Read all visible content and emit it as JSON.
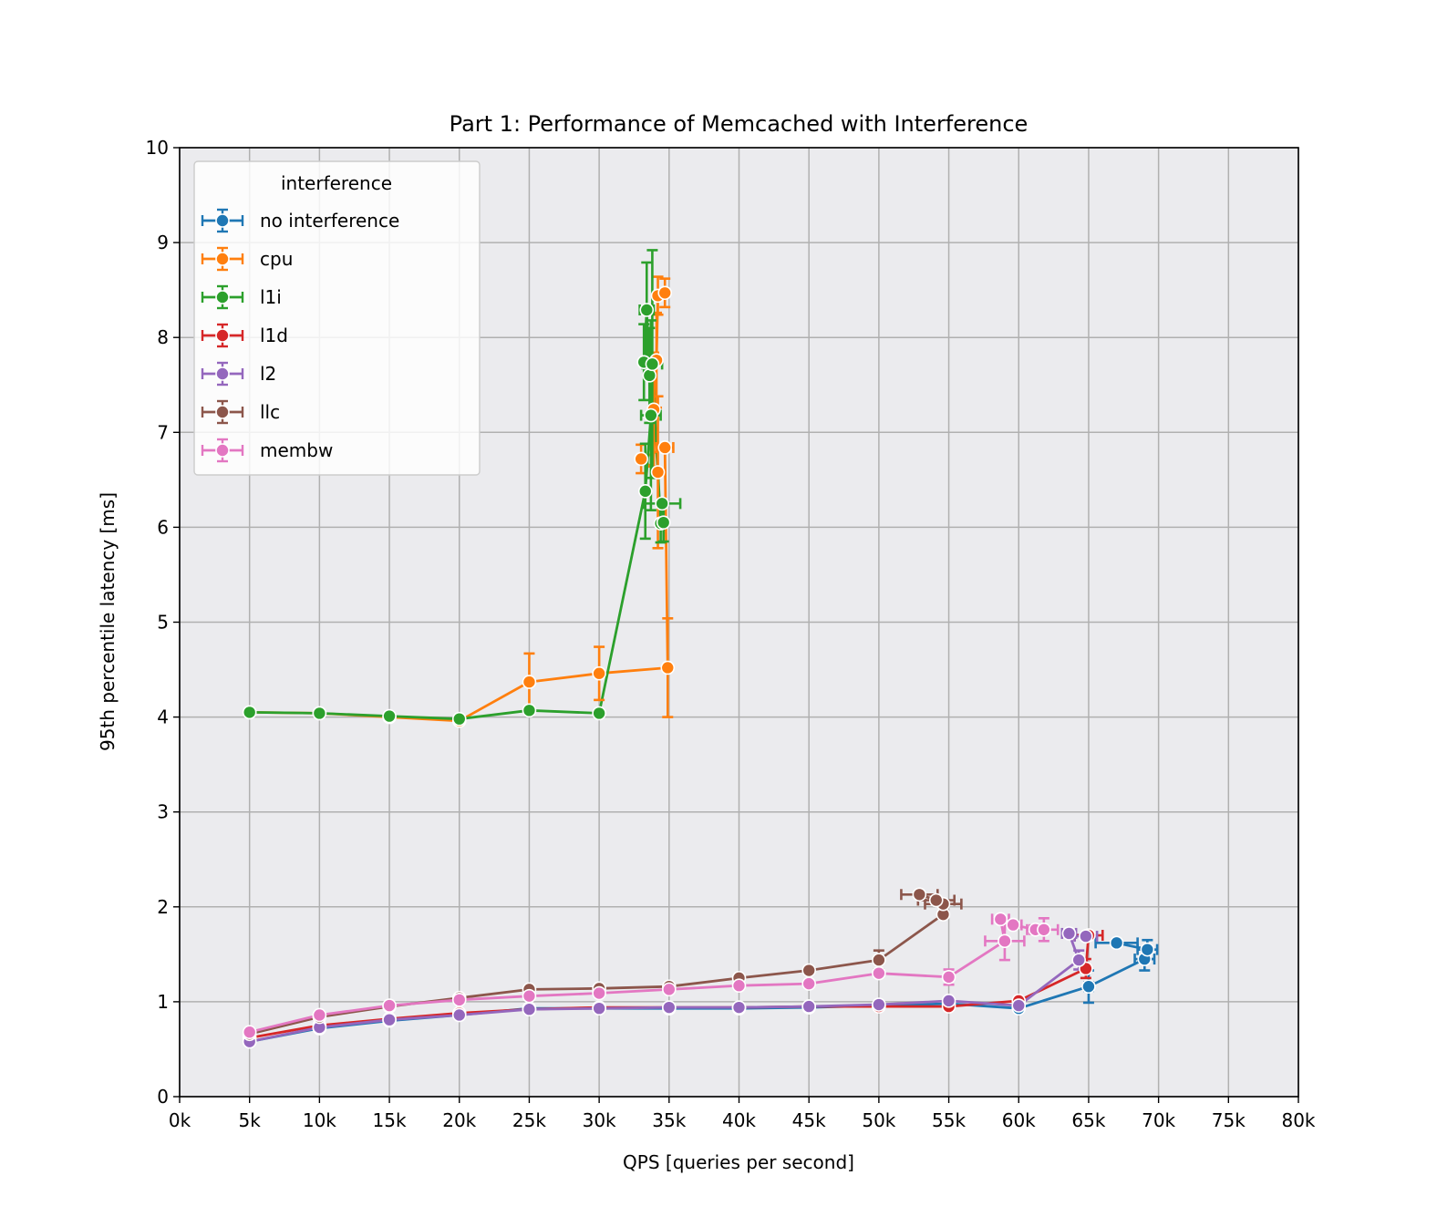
{
  "chart_data": {
    "type": "line",
    "title": "Part 1: Performance of Memcached with Interference",
    "xlabel": "QPS [queries per second]",
    "ylabel": "95th percentile latency [ms]",
    "xlim": [
      0,
      80000
    ],
    "ylim": [
      0,
      10
    ],
    "grid": true,
    "legend": {
      "title": "interference",
      "placement": "top-left"
    },
    "xticks": [
      0,
      5000,
      10000,
      15000,
      20000,
      25000,
      30000,
      35000,
      40000,
      45000,
      50000,
      55000,
      60000,
      65000,
      70000,
      75000,
      80000
    ],
    "xtick_labels": [
      "0k",
      "5k",
      "10k",
      "15k",
      "20k",
      "25k",
      "30k",
      "35k",
      "40k",
      "45k",
      "50k",
      "55k",
      "60k",
      "65k",
      "70k",
      "75k",
      "80k"
    ],
    "yticks": [
      0,
      1,
      2,
      3,
      4,
      5,
      6,
      7,
      8,
      9,
      10
    ],
    "ytick_labels": [
      "0",
      "1",
      "2",
      "3",
      "4",
      "5",
      "6",
      "7",
      "8",
      "9",
      "10"
    ],
    "series": [
      {
        "name": "no interference",
        "color": "#1f77b4",
        "points": [
          {
            "x": 5000,
            "y": 0.58
          },
          {
            "x": 10000,
            "y": 0.72
          },
          {
            "x": 15000,
            "y": 0.8
          },
          {
            "x": 20000,
            "y": 0.86
          },
          {
            "x": 25000,
            "y": 0.93
          },
          {
            "x": 30000,
            "y": 0.93
          },
          {
            "x": 35000,
            "y": 0.93
          },
          {
            "x": 40000,
            "y": 0.93
          },
          {
            "x": 45000,
            "y": 0.94
          },
          {
            "x": 50000,
            "y": 0.96
          },
          {
            "x": 55000,
            "y": 0.98
          },
          {
            "x": 60000,
            "y": 0.93
          },
          {
            "x": 65000,
            "y": 1.16,
            "yerr": 0.17,
            "xerr": 300
          },
          {
            "x": 69000,
            "y": 1.45,
            "yerr": 0.12,
            "xerr": 700
          },
          {
            "x": 69200,
            "y": 1.55,
            "yerr": 0.1,
            "xerr": 700
          },
          {
            "x": 67000,
            "y": 1.62,
            "xerr": 1500
          }
        ]
      },
      {
        "name": "cpu",
        "color": "#ff7f0e",
        "points": [
          {
            "x": 5000,
            "y": 4.05
          },
          {
            "x": 10000,
            "y": 4.04
          },
          {
            "x": 15000,
            "y": 4.0
          },
          {
            "x": 20000,
            "y": 3.96
          },
          {
            "x": 25000,
            "y": 4.37,
            "yerr": 0.3
          },
          {
            "x": 30000,
            "y": 4.46,
            "yerr": 0.28
          },
          {
            "x": 34900,
            "y": 4.52,
            "yerr": 0.52
          },
          {
            "x": 34700,
            "y": 6.84,
            "xerr": 600
          },
          {
            "x": 33000,
            "y": 6.72,
            "yerr": 0.15
          },
          {
            "x": 34200,
            "y": 6.58,
            "yerr": 0.8
          },
          {
            "x": 33900,
            "y": 7.24,
            "yerr": 0.6
          },
          {
            "x": 34100,
            "y": 7.76,
            "yerr": 0.5
          },
          {
            "x": 34200,
            "y": 8.44,
            "yerr": 0.2
          },
          {
            "x": 34700,
            "y": 8.47,
            "yerr": 0.15
          }
        ]
      },
      {
        "name": "l1i",
        "color": "#2ca02c",
        "points": [
          {
            "x": 5000,
            "y": 4.05
          },
          {
            "x": 10000,
            "y": 4.04
          },
          {
            "x": 15000,
            "y": 4.01
          },
          {
            "x": 20000,
            "y": 3.98
          },
          {
            "x": 25000,
            "y": 4.07
          },
          {
            "x": 30000,
            "y": 4.04
          },
          {
            "x": 33300,
            "y": 6.38,
            "yerr": 0.5
          },
          {
            "x": 33700,
            "y": 7.18,
            "yerr": 1.0,
            "xerr": 700
          },
          {
            "x": 33400,
            "y": 8.29,
            "yerr": 0.5,
            "xerr": 500
          },
          {
            "x": 33200,
            "y": 7.74,
            "yerr": 0.4
          },
          {
            "x": 33600,
            "y": 7.6,
            "yerr": 0.5
          },
          {
            "x": 33800,
            "y": 7.72,
            "yerr": 1.2,
            "xerr": 700
          },
          {
            "x": 34400,
            "y": 6.04,
            "yerr": 0.2
          },
          {
            "x": 34600,
            "y": 6.05,
            "yerr": 0.2
          },
          {
            "x": 34500,
            "y": 6.25,
            "xerr": 1300
          }
        ]
      },
      {
        "name": "l1d",
        "color": "#d62728",
        "points": [
          {
            "x": 5000,
            "y": 0.62
          },
          {
            "x": 10000,
            "y": 0.75
          },
          {
            "x": 15000,
            "y": 0.82
          },
          {
            "x": 20000,
            "y": 0.88
          },
          {
            "x": 25000,
            "y": 0.92
          },
          {
            "x": 30000,
            "y": 0.94
          },
          {
            "x": 35000,
            "y": 0.94
          },
          {
            "x": 40000,
            "y": 0.94
          },
          {
            "x": 45000,
            "y": 0.95
          },
          {
            "x": 50000,
            "y": 0.95
          },
          {
            "x": 55000,
            "y": 0.95
          },
          {
            "x": 60000,
            "y": 1.01
          },
          {
            "x": 64800,
            "y": 1.35,
            "yerr": 0.1
          },
          {
            "x": 65000,
            "y": 1.7,
            "xerr": 1000
          }
        ]
      },
      {
        "name": "l2",
        "color": "#9467bd",
        "points": [
          {
            "x": 5000,
            "y": 0.58
          },
          {
            "x": 10000,
            "y": 0.73
          },
          {
            "x": 15000,
            "y": 0.81
          },
          {
            "x": 20000,
            "y": 0.86
          },
          {
            "x": 25000,
            "y": 0.92
          },
          {
            "x": 30000,
            "y": 0.93
          },
          {
            "x": 35000,
            "y": 0.94
          },
          {
            "x": 40000,
            "y": 0.94
          },
          {
            "x": 45000,
            "y": 0.95
          },
          {
            "x": 50000,
            "y": 0.97
          },
          {
            "x": 55000,
            "y": 1.01
          },
          {
            "x": 60000,
            "y": 0.96
          },
          {
            "x": 64300,
            "y": 1.44,
            "yerr": 0.1
          },
          {
            "x": 63600,
            "y": 1.72,
            "xerr": 500
          },
          {
            "x": 64800,
            "y": 1.69,
            "xerr": 800
          }
        ]
      },
      {
        "name": "llc",
        "color": "#8c564b",
        "points": [
          {
            "x": 5000,
            "y": 0.66
          },
          {
            "x": 10000,
            "y": 0.84
          },
          {
            "x": 15000,
            "y": 0.95
          },
          {
            "x": 20000,
            "y": 1.04
          },
          {
            "x": 25000,
            "y": 1.13
          },
          {
            "x": 30000,
            "y": 1.14
          },
          {
            "x": 35000,
            "y": 1.16
          },
          {
            "x": 40000,
            "y": 1.25
          },
          {
            "x": 45000,
            "y": 1.33
          },
          {
            "x": 50000,
            "y": 1.44,
            "yerr": 0.1
          },
          {
            "x": 54600,
            "y": 1.92
          },
          {
            "x": 54600,
            "y": 2.03,
            "xerr": 1300
          },
          {
            "x": 54100,
            "y": 2.07,
            "xerr": 1300
          },
          {
            "x": 52900,
            "y": 2.13,
            "xerr": 1300
          }
        ]
      },
      {
        "name": "membw",
        "color": "#e377c2",
        "points": [
          {
            "x": 5000,
            "y": 0.68
          },
          {
            "x": 10000,
            "y": 0.86
          },
          {
            "x": 15000,
            "y": 0.96
          },
          {
            "x": 20000,
            "y": 1.02
          },
          {
            "x": 25000,
            "y": 1.06
          },
          {
            "x": 30000,
            "y": 1.09
          },
          {
            "x": 35000,
            "y": 1.13
          },
          {
            "x": 40000,
            "y": 1.17
          },
          {
            "x": 45000,
            "y": 1.19
          },
          {
            "x": 50000,
            "y": 1.3
          },
          {
            "x": 55000,
            "y": 1.26,
            "yerr": 0.08
          },
          {
            "x": 59000,
            "y": 1.64,
            "yerr": 0.2,
            "xerr": 1400
          },
          {
            "x": 58700,
            "y": 1.87,
            "xerr": 600
          },
          {
            "x": 59600,
            "y": 1.81,
            "xerr": 600
          },
          {
            "x": 61200,
            "y": 1.76,
            "xerr": 600
          },
          {
            "x": 61800,
            "y": 1.76,
            "yerr": 0.12,
            "xerr": 1000
          }
        ]
      }
    ]
  }
}
